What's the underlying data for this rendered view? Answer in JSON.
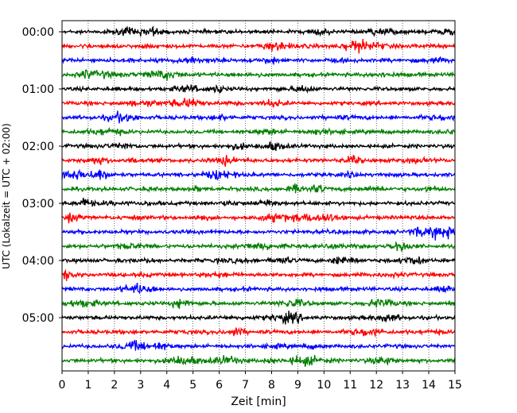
{
  "chart_data": {
    "type": "line",
    "title": "",
    "xlabel": "Zeit  [min]",
    "ylabel": "UTC (Lokalzeit = UTC + 02:00)",
    "xlim": [
      0,
      15
    ],
    "x_ticks": [
      0,
      1,
      2,
      3,
      4,
      5,
      6,
      7,
      8,
      9,
      10,
      11,
      12,
      13,
      14,
      15
    ],
    "y_tick_labels": [
      "00:00",
      "01:00",
      "02:00",
      "03:00",
      "04:00",
      "05:00"
    ],
    "grid": "vertical dotted lines at each minute",
    "legend": "none",
    "trace_minutes": 15,
    "trace_start_times": [
      "00:00",
      "00:15",
      "00:30",
      "00:45",
      "01:00",
      "01:15",
      "01:30",
      "01:45",
      "02:00",
      "02:15",
      "02:30",
      "02:45",
      "03:00",
      "03:15",
      "03:30",
      "03:45",
      "04:00",
      "04:15",
      "04:30",
      "04:45",
      "05:00",
      "05:15",
      "05:30",
      "05:45"
    ],
    "colors": [
      "#000000",
      "#ff0000",
      "#0000ff",
      "#007f00"
    ],
    "noise_amplitude": 0.12
  }
}
